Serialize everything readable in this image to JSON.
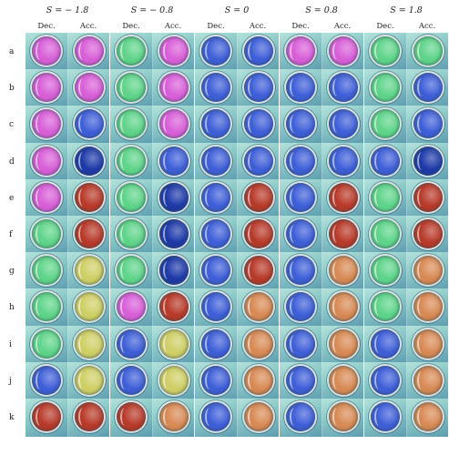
{
  "groups": [
    {
      "title": "S = − 1.8",
      "col_labels": [
        "Dec.",
        "Acc."
      ]
    },
    {
      "title": "S = − 0.8",
      "col_labels": [
        "Dec.",
        "Acc."
      ]
    },
    {
      "title": "S = 0",
      "col_labels": [
        "Dec.",
        "Acc."
      ]
    },
    {
      "title": "S = 0.8",
      "col_labels": [
        "Dec.",
        "Acc."
      ]
    },
    {
      "title": "S = 1.8",
      "col_labels": [
        "Dec.",
        "Acc."
      ]
    }
  ],
  "rows": [
    "a",
    "b",
    "c",
    "d",
    "e",
    "f",
    "g",
    "h",
    "i",
    "j",
    "k"
  ],
  "palette": {
    "M": "#d85fd8",
    "G": "#5fd48a",
    "B": "#3f5fd8",
    "N": "#1e3aa8",
    "R": "#b83a2a",
    "Y": "#cfcf66",
    "O": "#d88a55",
    "P": "#8a4a8a"
  },
  "tile_colors": [
    [
      "MM",
      "GM",
      "BB",
      "MM",
      "GG"
    ],
    [
      "MM",
      "GM",
      "BB",
      "BB",
      "GB"
    ],
    [
      "MB",
      "GM",
      "BB",
      "BB",
      "GB"
    ],
    [
      "MN",
      "GB",
      "BB",
      "BB",
      "BN"
    ],
    [
      "MR",
      "GN",
      "BR",
      "BR",
      "GR"
    ],
    [
      "GR",
      "GN",
      "BR",
      "BR",
      "GR"
    ],
    [
      "GY",
      "GN",
      "BR",
      "BO",
      "GO"
    ],
    [
      "GY",
      "MR",
      "BO",
      "BO",
      "GO"
    ],
    [
      "GY",
      "BY",
      "BO",
      "BO",
      "BO"
    ],
    [
      "BY",
      "BY",
      "BO",
      "BO",
      "BO"
    ],
    [
      "RR",
      "RO",
      "BO",
      "BO",
      "BO"
    ]
  ]
}
